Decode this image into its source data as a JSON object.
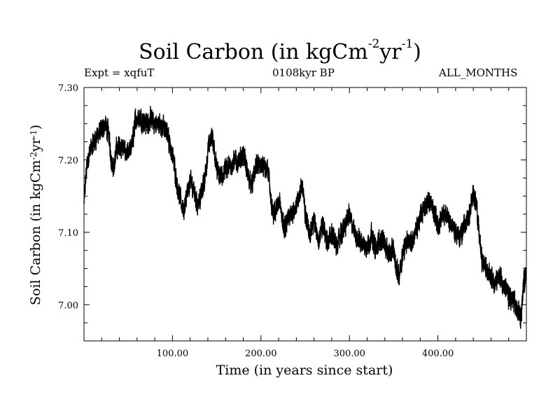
{
  "figure": {
    "title_main": "Soil Carbon (in kgCm",
    "title_exp1": "-2",
    "title_mid": "yr",
    "title_exp2": "-1",
    "title_close": ")",
    "expt_label": "Expt = xqfuT",
    "period_label": "0108kyr BP",
    "months_label": "ALL_MONTHS"
  },
  "chart_data": {
    "type": "line",
    "title": "Soil Carbon (in kgCm-2yr-1)",
    "xlabel": "Time (in years since start)",
    "ylabel": "Soil Carbon (in kgCm-2yr-1)",
    "ylabel_parts": {
      "main": "Soil Carbon (in kgCm",
      "exp1": "-2",
      "mid": "yr",
      "exp2": "-1",
      "close": ")"
    },
    "xlim": [
      0,
      500
    ],
    "ylim": [
      6.95,
      7.3
    ],
    "xticks": [
      100,
      200,
      300,
      400
    ],
    "xtick_labels": [
      "100.00",
      "200.00",
      "300.00",
      "400.00"
    ],
    "yticks": [
      7.0,
      7.1,
      7.2,
      7.3
    ],
    "ytick_labels": [
      "7.00",
      "7.10",
      "7.20",
      "7.30"
    ],
    "grid": false,
    "series": [
      {
        "name": "Soil Carbon",
        "color": "#000000",
        "x": [
          0,
          3,
          6,
          10,
          15,
          20,
          24,
          28,
          31,
          34,
          37,
          40,
          45,
          50,
          55,
          58,
          62,
          66,
          70,
          75,
          80,
          85,
          90,
          95,
          98,
          102,
          106,
          110,
          113,
          116,
          120,
          124,
          128,
          132,
          136,
          140,
          144,
          147,
          150,
          155,
          160,
          165,
          170,
          175,
          180,
          185,
          190,
          195,
          200,
          205,
          208,
          211,
          214,
          218,
          222,
          226,
          230,
          234,
          238,
          242,
          246,
          250,
          255,
          260,
          265,
          270,
          275,
          280,
          285,
          290,
          295,
          300,
          305,
          310,
          315,
          320,
          325,
          330,
          335,
          340,
          345,
          350,
          353,
          356,
          360,
          365,
          370,
          375,
          380,
          385,
          390,
          395,
          400,
          405,
          410,
          415,
          420,
          425,
          430,
          435,
          438,
          441,
          444,
          447,
          450,
          455,
          460,
          465,
          470,
          475,
          480,
          485,
          490,
          494,
          497,
          500
        ],
        "y": [
          7.14,
          7.19,
          7.21,
          7.22,
          7.235,
          7.24,
          7.25,
          7.235,
          7.2,
          7.19,
          7.215,
          7.22,
          7.215,
          7.205,
          7.225,
          7.255,
          7.26,
          7.255,
          7.25,
          7.255,
          7.25,
          7.25,
          7.245,
          7.235,
          7.215,
          7.195,
          7.16,
          7.14,
          7.13,
          7.15,
          7.17,
          7.16,
          7.14,
          7.15,
          7.17,
          7.21,
          7.235,
          7.22,
          7.185,
          7.175,
          7.19,
          7.19,
          7.2,
          7.195,
          7.21,
          7.18,
          7.165,
          7.195,
          7.19,
          7.185,
          7.19,
          7.145,
          7.12,
          7.135,
          7.14,
          7.1,
          7.115,
          7.125,
          7.135,
          7.14,
          7.17,
          7.125,
          7.1,
          7.115,
          7.09,
          7.11,
          7.085,
          7.1,
          7.08,
          7.095,
          7.11,
          7.125,
          7.1,
          7.09,
          7.085,
          7.08,
          7.095,
          7.075,
          7.09,
          7.085,
          7.07,
          7.075,
          7.05,
          7.04,
          7.07,
          7.09,
          7.085,
          7.1,
          7.12,
          7.135,
          7.145,
          7.13,
          7.11,
          7.12,
          7.125,
          7.11,
          7.1,
          7.095,
          7.11,
          7.12,
          7.14,
          7.155,
          7.135,
          7.09,
          7.06,
          7.05,
          7.04,
          7.03,
          7.04,
          7.025,
          7.01,
          7.005,
          6.99,
          6.985,
          7.03,
          7.05
        ]
      }
    ]
  }
}
